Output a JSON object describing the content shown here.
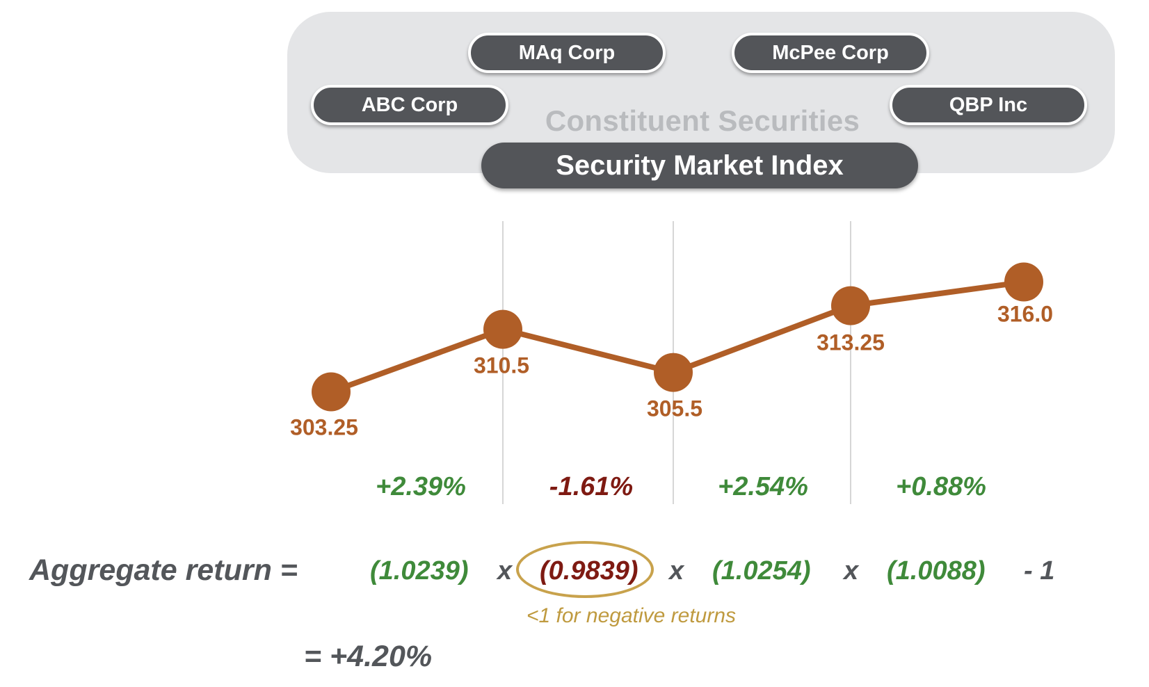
{
  "constituents": {
    "label": "Constituent Securities",
    "securities": [
      "MAq Corp",
      "McPee Corp",
      "ABC Corp",
      "QBP Inc"
    ]
  },
  "index_label": "Security Market Index",
  "chart_data": {
    "type": "line",
    "x": [
      1,
      2,
      3,
      4,
      5
    ],
    "values": [
      303.25,
      310.5,
      305.5,
      313.25,
      316.0
    ],
    "point_labels": [
      "303.25",
      "310.5",
      "305.5",
      "313.25",
      "316.0"
    ],
    "period_returns": [
      "+2.39%",
      "-1.61%",
      "+2.54%",
      "+0.88%"
    ],
    "line_color": "#b05e27",
    "positive_color": "#3f8a3a",
    "negative_color": "#7e1a12",
    "grid": true
  },
  "equation": {
    "label": "Aggregate return =",
    "factors": [
      "(1.0239)",
      "(0.9839)",
      "(1.0254)",
      "(1.0088)"
    ],
    "operator": "x",
    "tail": "- 1",
    "note": "<1 for negative returns",
    "result": "=  +4.20%"
  }
}
